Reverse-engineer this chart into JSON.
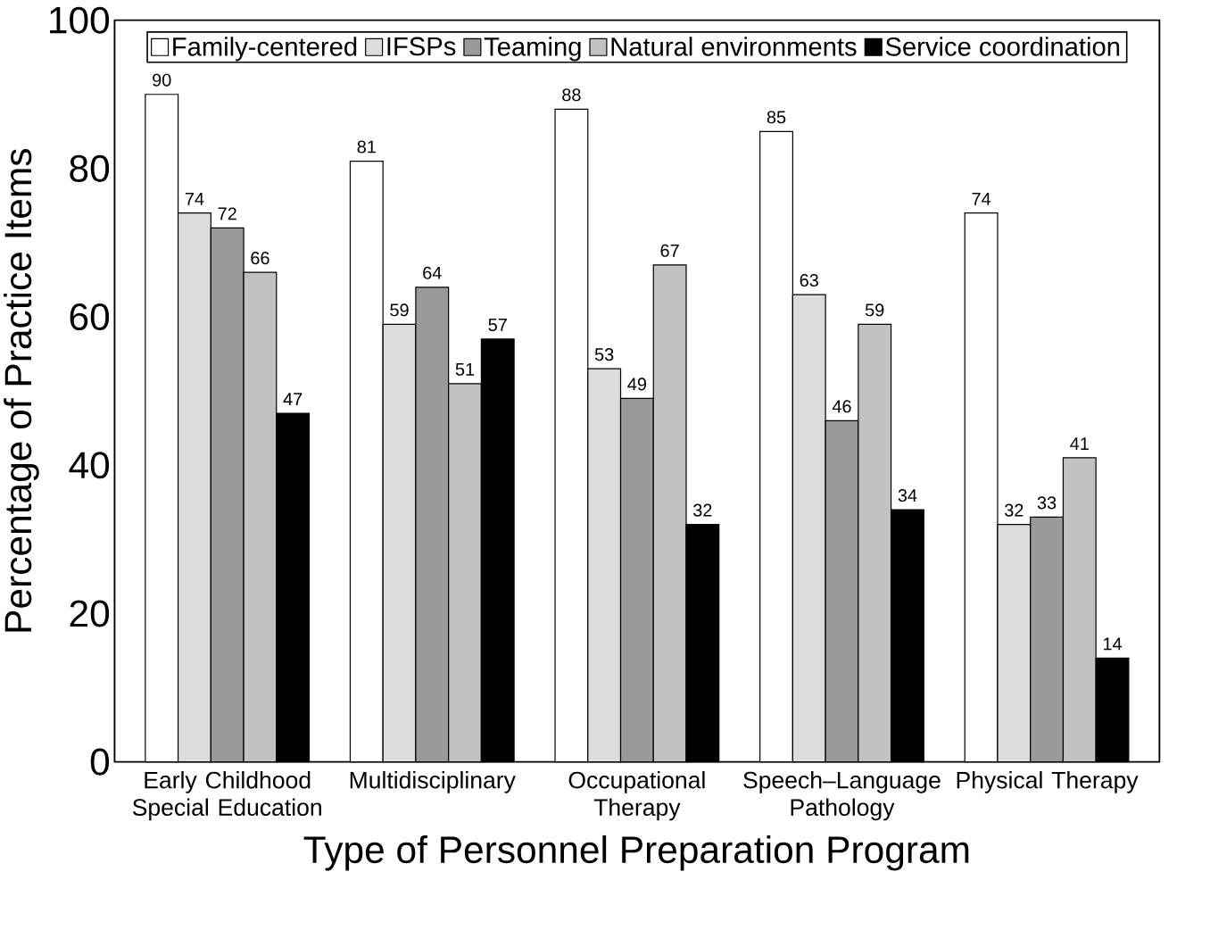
{
  "chart_data": {
    "type": "bar",
    "xlabel": "Type of Personnel Preparation Program",
    "ylabel": "Percentage of Practice Items",
    "categories": [
      "Early Childhood Special Education",
      "Multidisciplinary",
      "Occupational Therapy",
      "Speech–Language Pathology",
      "Physical Therapy"
    ],
    "series": [
      {
        "name": "Family-centered",
        "color": "#ffffff",
        "values": [
          90,
          81,
          88,
          85,
          74
        ]
      },
      {
        "name": "IFSPs",
        "color": "#dcdcdc",
        "values": [
          74,
          59,
          53,
          63,
          32
        ]
      },
      {
        "name": "Teaming",
        "color": "#9a9a9a",
        "values": [
          72,
          64,
          49,
          46,
          33
        ]
      },
      {
        "name": "Natural environments",
        "color": "#c2c2c2",
        "values": [
          66,
          51,
          67,
          59,
          41
        ]
      },
      {
        "name": "Service coordination",
        "color": "#000000",
        "values": [
          47,
          57,
          32,
          34,
          14
        ]
      }
    ],
    "ylim": [
      0,
      100
    ],
    "yticks": [
      0,
      20,
      40,
      60,
      80,
      100
    ],
    "data_labels": true,
    "legend": "top",
    "grid": false
  }
}
